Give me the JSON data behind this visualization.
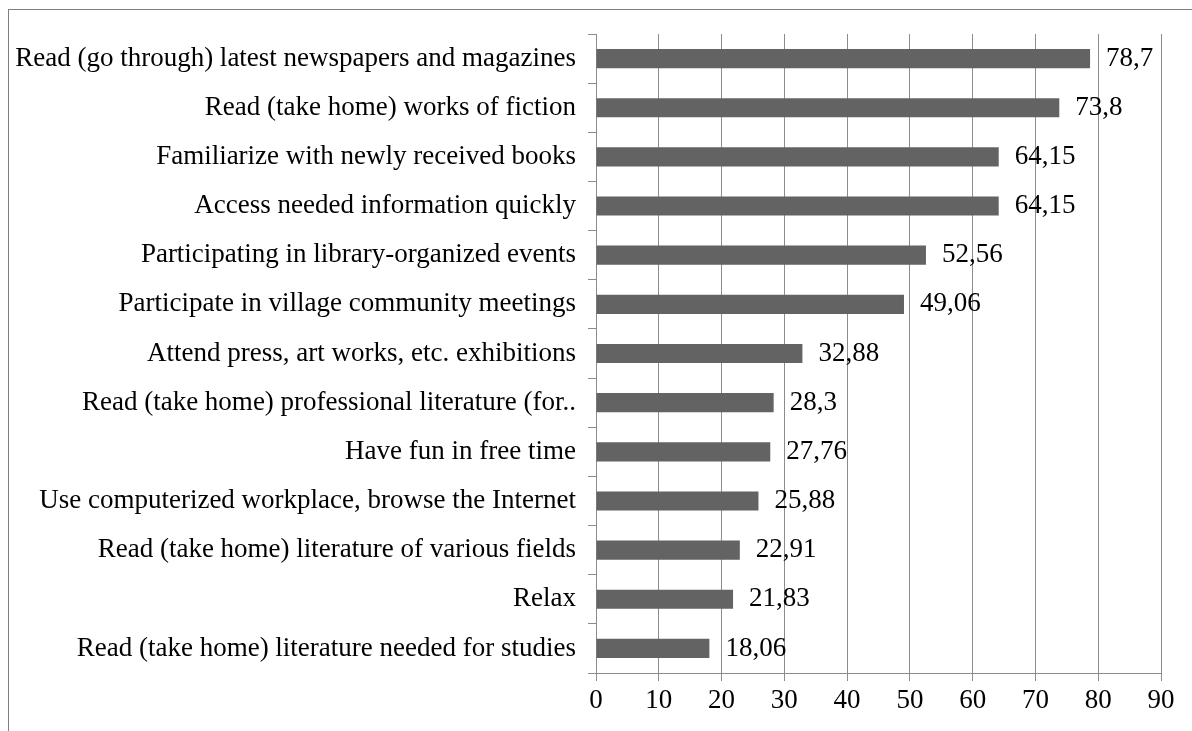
{
  "chart_data": {
    "type": "bar",
    "orientation": "horizontal",
    "categories": [
      "Read (go through) latest newspapers and magazines",
      "Read (take home) works of fiction",
      "Familiarize with newly received books",
      "Access needed information quickly",
      "Participating in library-organized events",
      "Participate in village community meetings",
      "Attend press, art works, etc. exhibitions",
      "Read (take home) professional literature (for..",
      "Have fun in free time",
      "Use computerized workplace, browse the Internet",
      "Read (take home) literature of various fields",
      "Relax",
      "Read (take home) literature needed for studies"
    ],
    "values": [
      78.7,
      73.8,
      64.15,
      64.15,
      52.56,
      49.06,
      32.88,
      28.3,
      27.76,
      25.88,
      22.91,
      21.83,
      18.06
    ],
    "value_labels": [
      "78,7",
      "73,8",
      "64,15",
      "64,15",
      "52,56",
      "49,06",
      "32,88",
      "28,3",
      "27,76",
      "25,88",
      "22,91",
      "21,83",
      "18,06"
    ],
    "color": "#636363",
    "xlim": [
      0,
      90
    ],
    "xticks": [
      0,
      10,
      20,
      30,
      40,
      50,
      60,
      70,
      80,
      90
    ],
    "grid": "x"
  }
}
